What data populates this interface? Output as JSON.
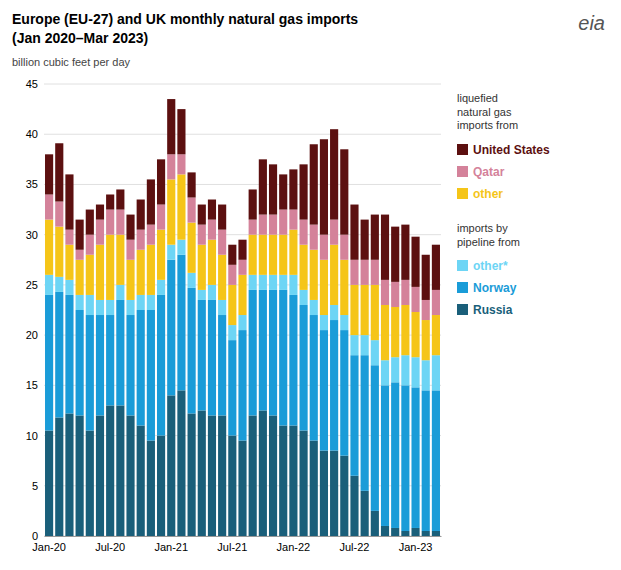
{
  "chart_data": {
    "type": "bar",
    "stacked": true,
    "title": "Europe (EU-27) and UK monthly natural gas imports",
    "subtitle": "(Jan 2020–Mar 2023)",
    "y_label": "billion cubic feet per day",
    "categories": [
      "Jan-20",
      null,
      null,
      null,
      null,
      null,
      "Jul-20",
      null,
      null,
      null,
      null,
      null,
      "Jan-21",
      null,
      null,
      null,
      null,
      null,
      "Jul-21",
      null,
      null,
      null,
      null,
      null,
      "Jan-22",
      null,
      null,
      null,
      null,
      null,
      "Jul-22",
      null,
      null,
      null,
      null,
      null,
      "Jan-23",
      null,
      null
    ],
    "series": [
      {
        "name": "Russia",
        "color": "#1a5f7a",
        "values": [
          10.5,
          11.8,
          12.2,
          12.0,
          10.5,
          12.0,
          13.0,
          13.0,
          12.0,
          11.0,
          9.5,
          10.0,
          14.0,
          14.5,
          12.2,
          12.5,
          12.0,
          12.0,
          10.0,
          9.5,
          12.0,
          12.5,
          12.0,
          11.0,
          11.0,
          10.5,
          9.5,
          8.5,
          8.5,
          8.0,
          6.0,
          4.5,
          2.5,
          1.0,
          0.8,
          0.5,
          0.8,
          0.5,
          0.5
        ]
      },
      {
        "name": "Norway",
        "color": "#1a9cd8",
        "values": [
          13.5,
          12.5,
          11.8,
          10.5,
          11.5,
          10.0,
          9.0,
          10.5,
          10.0,
          11.5,
          13.0,
          14.0,
          13.5,
          13.5,
          12.5,
          11.0,
          11.5,
          10.0,
          9.5,
          11.0,
          12.5,
          12.0,
          12.5,
          13.5,
          13.0,
          12.5,
          12.5,
          12.0,
          13.0,
          12.5,
          12.0,
          13.5,
          14.5,
          14.0,
          14.5,
          14.5,
          14.0,
          14.0,
          14.0
        ]
      },
      {
        "name": "other*",
        "color": "#6dd5f5",
        "values": [
          2.0,
          1.5,
          1.5,
          1.5,
          2.0,
          1.5,
          1.5,
          1.5,
          1.5,
          1.5,
          1.5,
          1.5,
          1.5,
          1.5,
          1.5,
          1.0,
          1.5,
          1.5,
          1.5,
          1.5,
          1.5,
          1.5,
          1.5,
          1.5,
          2.0,
          1.5,
          1.5,
          1.5,
          1.5,
          1.5,
          2.0,
          2.0,
          2.5,
          2.5,
          2.5,
          3.0,
          3.0,
          3.0,
          3.5
        ]
      },
      {
        "name": "other",
        "color": "#f5c518",
        "values": [
          5.5,
          5.0,
          3.5,
          3.5,
          4.0,
          5.5,
          6.5,
          5.0,
          4.0,
          4.5,
          5.0,
          5.0,
          6.5,
          6.5,
          5.0,
          4.5,
          4.5,
          4.5,
          4.0,
          4.0,
          4.0,
          4.0,
          4.0,
          4.0,
          4.5,
          4.5,
          5.0,
          5.5,
          6.0,
          5.5,
          5.0,
          5.0,
          5.5,
          5.5,
          5.0,
          5.0,
          4.5,
          4.0,
          4.0
        ]
      },
      {
        "name": "Qatar",
        "color": "#d4829a",
        "values": [
          2.5,
          2.5,
          1.5,
          1.0,
          2.0,
          2.5,
          2.5,
          2.5,
          2.0,
          2.0,
          2.0,
          2.5,
          2.5,
          2.0,
          2.5,
          2.0,
          2.0,
          2.5,
          2.0,
          1.5,
          1.5,
          2.0,
          2.0,
          2.5,
          2.0,
          2.5,
          2.5,
          2.5,
          2.5,
          2.5,
          2.5,
          2.5,
          2.5,
          2.5,
          2.5,
          2.5,
          2.5,
          2.0,
          2.5
        ]
      },
      {
        "name": "United States",
        "color": "#5c1010",
        "values": [
          4.0,
          5.8,
          5.5,
          3.0,
          2.5,
          1.5,
          1.5,
          2.0,
          2.5,
          3.0,
          4.5,
          4.5,
          5.5,
          4.5,
          2.5,
          2.0,
          2.0,
          2.5,
          2.0,
          2.0,
          3.0,
          5.5,
          5.0,
          3.5,
          4.0,
          5.5,
          8.0,
          9.5,
          9.0,
          8.5,
          5.5,
          4.0,
          4.5,
          6.5,
          5.5,
          5.5,
          5.0,
          4.5,
          4.5
        ]
      }
    ],
    "ylim": [
      0,
      45
    ],
    "yticks": [
      0,
      5,
      10,
      15,
      20,
      25,
      30,
      35,
      40,
      45
    ],
    "grid": true,
    "legend": "right",
    "annotations": [
      {
        "text": "liquefied\nnatural gas\nimports from"
      },
      {
        "text": "imports by\npipeline from"
      },
      {
        "text": "eia"
      }
    ]
  }
}
